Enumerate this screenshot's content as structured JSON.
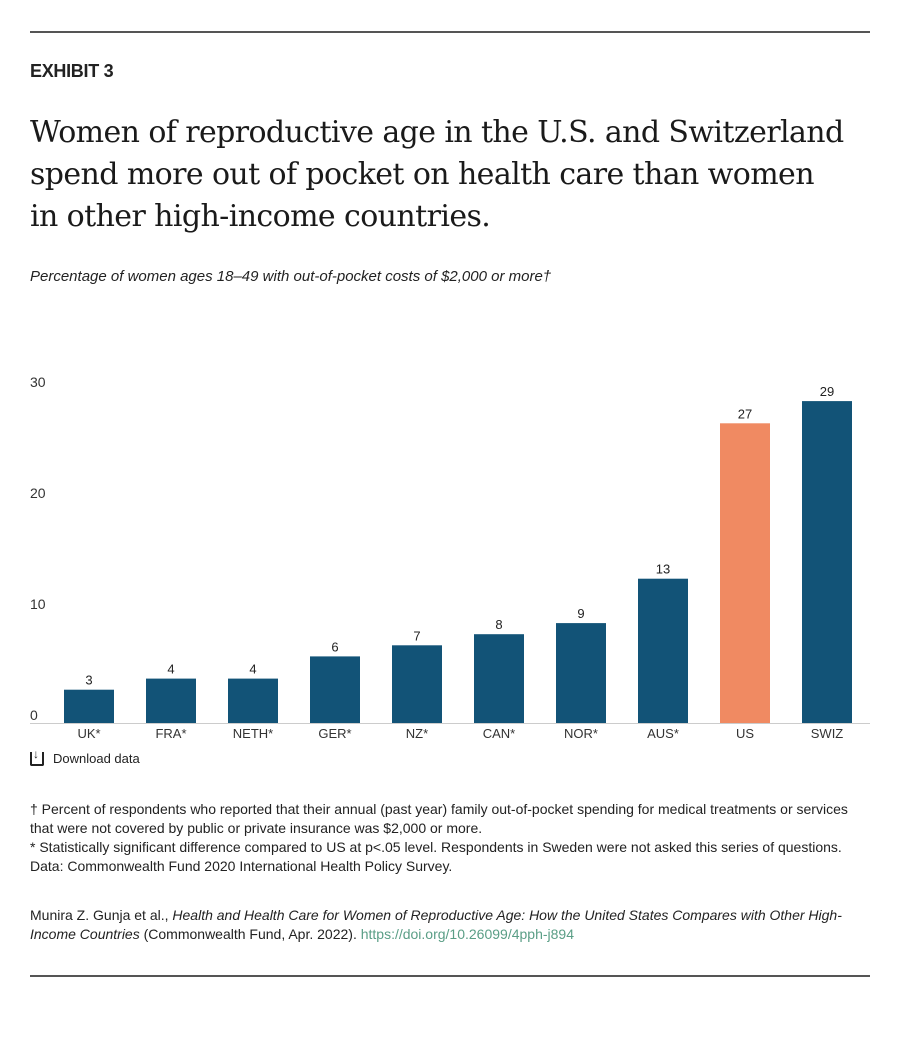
{
  "exhibit": "EXHIBIT 3",
  "title": "Women of reproductive age in the U.S. and Switzerland spend more out of pocket on health care than women in other high-income countries.",
  "subtitle": "Percentage of women ages 18–49 with out-of-pocket costs of $2,000 or more†",
  "download_label": "Download data",
  "notes": [
    "† Percent of respondents who reported that their annual (past year) family out-of-pocket spending for medical treatments or services that were not covered by public or private insurance was $2,000 or more.",
    "* Statistically significant difference compared to US at p<.05 level. Respondents in Sweden were not asked this series of questions.",
    "Data: Commonwealth Fund 2020 International Health Policy Survey."
  ],
  "citation": {
    "authors": "Munira Z. Gunja et al., ",
    "work": "Health and Health Care for Women of Reproductive Age: How the United States Compares with Other High-Income Countries",
    "publisher": " (Commonwealth Fund, Apr. 2022). ",
    "link": "https://doi.org/10.26099/4pph-j894"
  },
  "colors": {
    "default": "#125377",
    "highlight": "#f08a62"
  },
  "chart_data": {
    "type": "bar",
    "categories": [
      "UK*",
      "FRA*",
      "NETH*",
      "GER*",
      "NZ*",
      "CAN*",
      "NOR*",
      "AUS*",
      "US",
      "SWIZ"
    ],
    "values": [
      3,
      4,
      4,
      6,
      7,
      8,
      9,
      13,
      27,
      29
    ],
    "highlight": [
      "US"
    ],
    "ylim": [
      0,
      30
    ],
    "yticks": [
      0,
      10,
      20,
      30
    ],
    "grid": false,
    "title": "",
    "xlabel": "",
    "ylabel": ""
  }
}
